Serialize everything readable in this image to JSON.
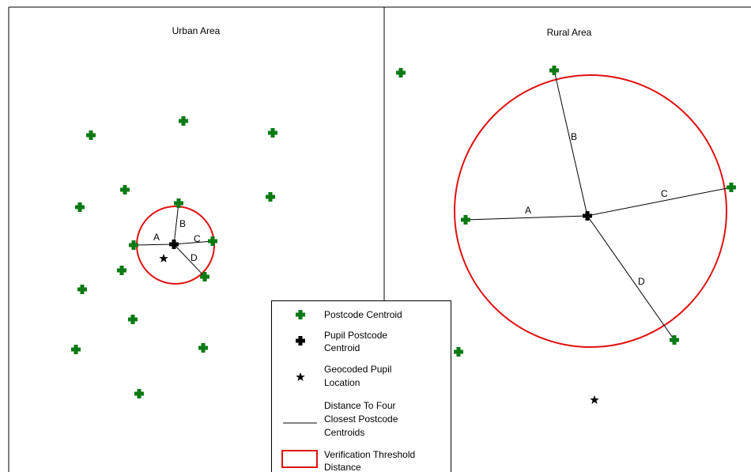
{
  "panels": {
    "urban": {
      "title": "Urban Area"
    },
    "rural": {
      "title": "Rural Area"
    }
  },
  "segment_labels": {
    "urban": [
      "A",
      "B",
      "C",
      "D"
    ],
    "rural": [
      "A",
      "B",
      "C",
      "D"
    ]
  },
  "legend": {
    "postcode_centroid": [
      "Postcode Centroid"
    ],
    "pupil_postcode_centroid": [
      "Pupil Postcode",
      "Centroid"
    ],
    "geocoded_pupil_location": [
      "Geocoded Pupil",
      "Location"
    ],
    "distance_lines": [
      "Distance To Four",
      "Closest Postcode",
      "Centroids"
    ],
    "verification_threshold": [
      "Verification Threshold",
      "Distance"
    ]
  },
  "colors": {
    "postcode_centroid": "#0a7a14",
    "pupil_centroid": "#000000",
    "threshold_circle": "#e01010",
    "frame": "#000000"
  },
  "icons": {
    "postcode_centroid": "green-cross-icon",
    "pupil_centroid": "black-cross-icon",
    "geocoded_pupil": "star-icon"
  }
}
